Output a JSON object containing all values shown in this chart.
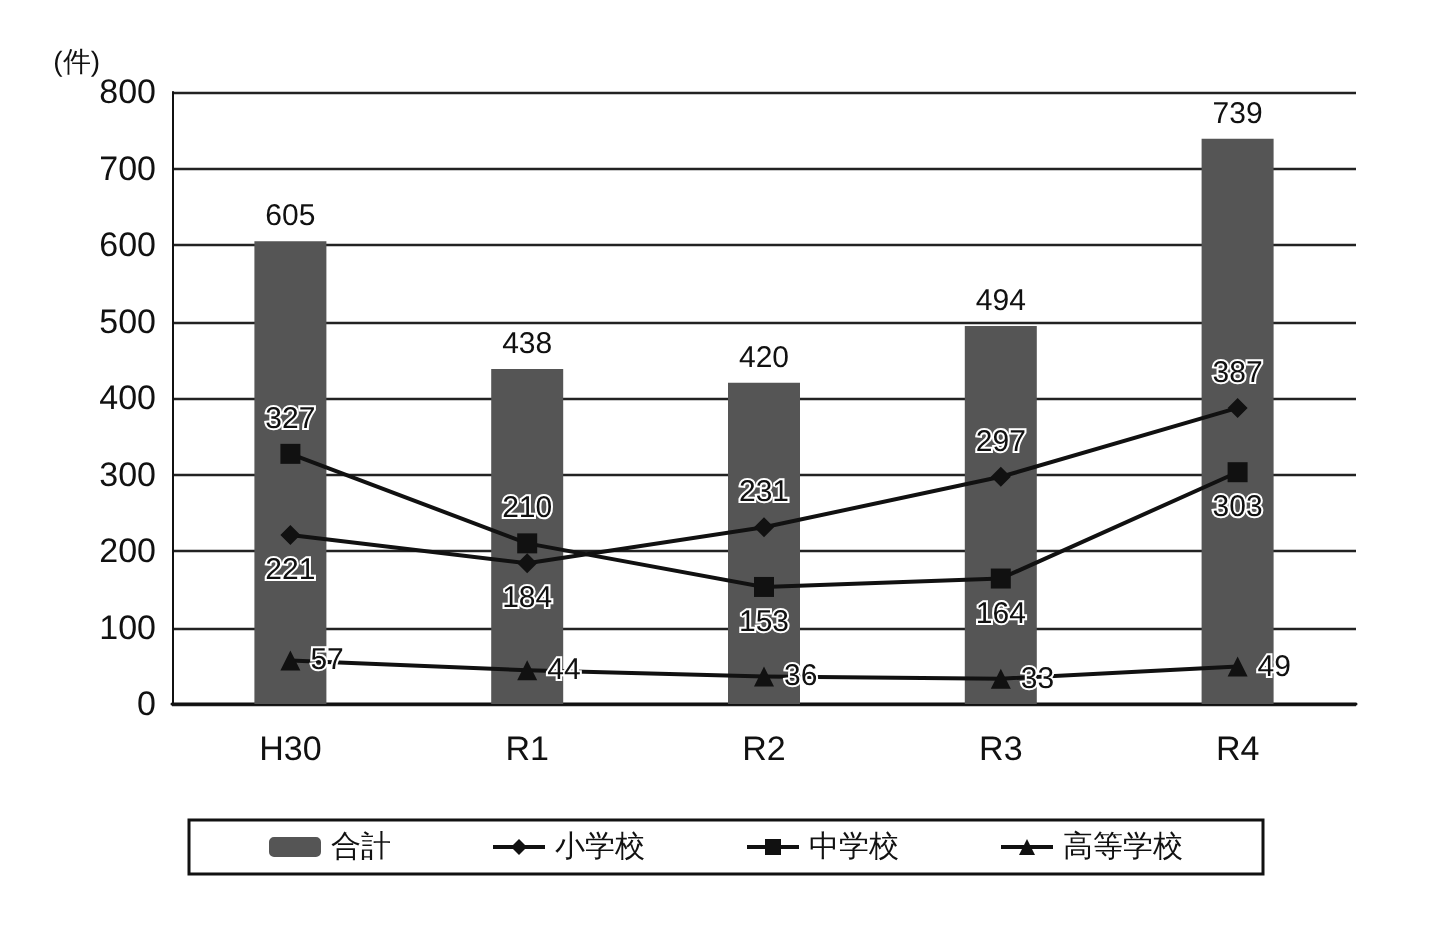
{
  "chart_data": {
    "type": "bar",
    "ylabel": "(件)",
    "categories": [
      "H30",
      "R1",
      "R2",
      "R3",
      "R4"
    ],
    "series": [
      {
        "name": "合計",
        "color": "#555555",
        "values": [
          605,
          438,
          420,
          494,
          739
        ]
      },
      {
        "name": "小学校",
        "type": "line",
        "color": "#111111",
        "marker": "diamond",
        "values": [
          221,
          184,
          231,
          297,
          387
        ]
      },
      {
        "name": "中学校",
        "type": "line",
        "color": "#111111",
        "marker": "square",
        "values": [
          327,
          210,
          153,
          164,
          303
        ]
      },
      {
        "name": "高等学校",
        "type": "line",
        "color": "#111111",
        "marker": "triangle",
        "values": [
          57,
          44,
          36,
          33,
          49
        ]
      }
    ],
    "ylim": [
      0,
      800
    ],
    "yticks": [
      0,
      100,
      200,
      300,
      400,
      500,
      600,
      700,
      800
    ],
    "grid": "y",
    "legend": "bottom",
    "data_labels": true,
    "line_style": "solid"
  }
}
